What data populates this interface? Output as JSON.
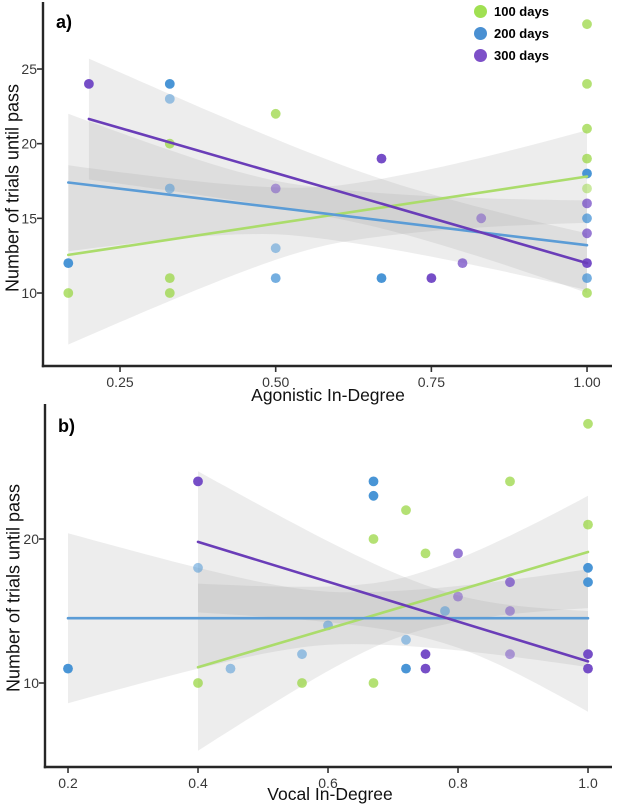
{
  "legend": {
    "items": [
      {
        "label": "100 days",
        "color": "#a0e052"
      },
      {
        "label": "200 days",
        "color": "#4a90d2"
      },
      {
        "label": "300 days",
        "color": "#7d50c8"
      }
    ]
  },
  "chart_data": [
    {
      "type": "scatter",
      "panel_label": "a)",
      "xlabel": "Agonistic In-Degree",
      "ylabel": "Number of trials until pass",
      "xlim": [
        0.1263,
        1.0401
      ],
      "ylim": [
        5.112,
        29.22
      ],
      "xticks": [
        0.25,
        0.5,
        0.75,
        1.0
      ],
      "xtick_labels": [
        "0.25",
        "0.50",
        "0.75",
        "1.00"
      ],
      "yticks": [
        10,
        15,
        20,
        25
      ],
      "ytick_labels": [
        "10",
        "15",
        "20",
        "25"
      ],
      "grid": false,
      "legend_position": "top-right",
      "series": [
        {
          "name": "100 days",
          "point_color": "#97d63f",
          "line_color": "#abdc6b",
          "points": [
            [
              0.167,
              10,
              1
            ],
            [
              0.33,
              20,
              1
            ],
            [
              0.33,
              11,
              1
            ],
            [
              0.33,
              10,
              1
            ],
            [
              0.5,
              22,
              1
            ],
            [
              1.0,
              28,
              1
            ],
            [
              1.0,
              24,
              1
            ],
            [
              1.0,
              21,
              1
            ],
            [
              1.0,
              19,
              1
            ],
            [
              1.0,
              17,
              0
            ],
            [
              1.0,
              10,
              1
            ]
          ],
          "line": {
            "x0": 0.167,
            "y0": 12.55,
            "x1": 1.0,
            "y1": 17.8
          },
          "band": {
            "x0": 0.167,
            "x1": 1.0,
            "xm": 0.62,
            "hw0": 6.0,
            "hwm": 1.9,
            "hw1": 3.1
          }
        },
        {
          "name": "200 days",
          "point_color": "#3f8fd4",
          "line_color": "#5b9cd6",
          "points": [
            [
              0.167,
              12,
              2
            ],
            [
              0.33,
              24,
              2
            ],
            [
              0.33,
              23,
              0
            ],
            [
              0.33,
              17,
              0
            ],
            [
              0.5,
              13,
              0
            ],
            [
              0.5,
              11,
              1
            ],
            [
              0.67,
              11,
              2
            ],
            [
              1.0,
              18,
              2
            ],
            [
              1.0,
              15,
              1
            ],
            [
              1.0,
              11,
              1
            ]
          ],
          "line": {
            "x0": 0.167,
            "y0": 17.4,
            "x1": 1.0,
            "y1": 13.2
          },
          "band": {
            "x0": 0.167,
            "x1": 1.0,
            "xm": 0.55,
            "hw0": 4.6,
            "hwm": 1.7,
            "hw1": 3.0
          }
        },
        {
          "name": "300 days",
          "point_color": "#6f45c4",
          "line_color": "#6a3db8",
          "points": [
            [
              0.2,
              24,
              2
            ],
            [
              0.5,
              17,
              0
            ],
            [
              0.67,
              19,
              2
            ],
            [
              0.75,
              11,
              2
            ],
            [
              0.8,
              12,
              1
            ],
            [
              0.83,
              15,
              0
            ],
            [
              1.0,
              16,
              1
            ],
            [
              1.0,
              14,
              1
            ],
            [
              1.0,
              12,
              2
            ]
          ],
          "line": {
            "x0": 0.2,
            "y0": 21.65,
            "x1": 1.0,
            "y1": 12.0
          },
          "band": {
            "x0": 0.2,
            "x1": 1.0,
            "xm": 0.73,
            "hw0": 4.05,
            "hwm": 1.6,
            "hw1": 2.0
          }
        }
      ]
    },
    {
      "type": "scatter",
      "panel_label": "b)",
      "xlabel": "Vocal In-Degree",
      "ylabel": "Number of trials until pass",
      "xlim": [
        0.1646,
        1.0369
      ],
      "ylim": [
        4.167,
        29.097
      ],
      "xticks": [
        0.2,
        0.4,
        0.6,
        0.8,
        1.0
      ],
      "xtick_labels": [
        "0.2",
        "0.4",
        "0.6",
        "0.8",
        "1.0"
      ],
      "yticks": [
        10,
        20
      ],
      "ytick_labels": [
        "10",
        "20"
      ],
      "grid": false,
      "legend_position": "none",
      "series": [
        {
          "name": "100 days",
          "point_color": "#97d63f",
          "line_color": "#abdc6b",
          "points": [
            [
              0.4,
              10,
              1
            ],
            [
              0.56,
              10,
              1
            ],
            [
              0.67,
              20,
              1
            ],
            [
              0.67,
              10,
              1
            ],
            [
              0.72,
              22,
              1
            ],
            [
              0.75,
              19,
              1
            ],
            [
              0.88,
              24,
              1
            ],
            [
              1.0,
              28,
              1
            ],
            [
              1.0,
              21,
              1
            ]
          ],
          "line": {
            "x0": 0.4,
            "y0": 11.1,
            "x1": 1.0,
            "y1": 19.1
          },
          "band": {
            "x0": 0.4,
            "x1": 1.0,
            "xm": 0.73,
            "hw0": 5.8,
            "hwm": 2.0,
            "hw1": 3.9
          }
        },
        {
          "name": "200 days",
          "point_color": "#3f8fd4",
          "line_color": "#5b9cd6",
          "points": [
            [
              0.2,
              11,
              2
            ],
            [
              0.4,
              18,
              0
            ],
            [
              0.45,
              11,
              0
            ],
            [
              0.56,
              12,
              0
            ],
            [
              0.6,
              14,
              0
            ],
            [
              0.67,
              24,
              2
            ],
            [
              0.67,
              23,
              2
            ],
            [
              0.72,
              13,
              0
            ],
            [
              0.72,
              11,
              2
            ],
            [
              0.78,
              15,
              0
            ],
            [
              1.0,
              18,
              2
            ],
            [
              1.0,
              17,
              2
            ]
          ],
          "line": {
            "x0": 0.2,
            "y0": 14.5,
            "x1": 1.0,
            "y1": 14.5
          },
          "band": {
            "x0": 0.2,
            "x1": 1.0,
            "xm": 0.63,
            "hw0": 5.9,
            "hwm": 1.8,
            "hw1": 3.4
          }
        },
        {
          "name": "300 days",
          "point_color": "#6f45c4",
          "line_color": "#6a3db8",
          "points": [
            [
              0.4,
              24,
              2
            ],
            [
              0.75,
              12,
              2
            ],
            [
              0.75,
              11,
              2
            ],
            [
              0.8,
              19,
              1
            ],
            [
              0.8,
              16,
              0
            ],
            [
              0.88,
              17,
              1
            ],
            [
              0.88,
              15,
              0
            ],
            [
              0.88,
              12,
              0
            ],
            [
              1.0,
              12,
              2
            ],
            [
              1.0,
              11,
              2
            ]
          ],
          "line": {
            "x0": 0.4,
            "y0": 19.8,
            "x1": 1.0,
            "y1": 11.5
          },
          "band": {
            "x0": 0.4,
            "x1": 1.0,
            "xm": 0.78,
            "hw0": 4.9,
            "hwm": 1.8,
            "hw1": 3.5
          }
        }
      ]
    }
  ]
}
